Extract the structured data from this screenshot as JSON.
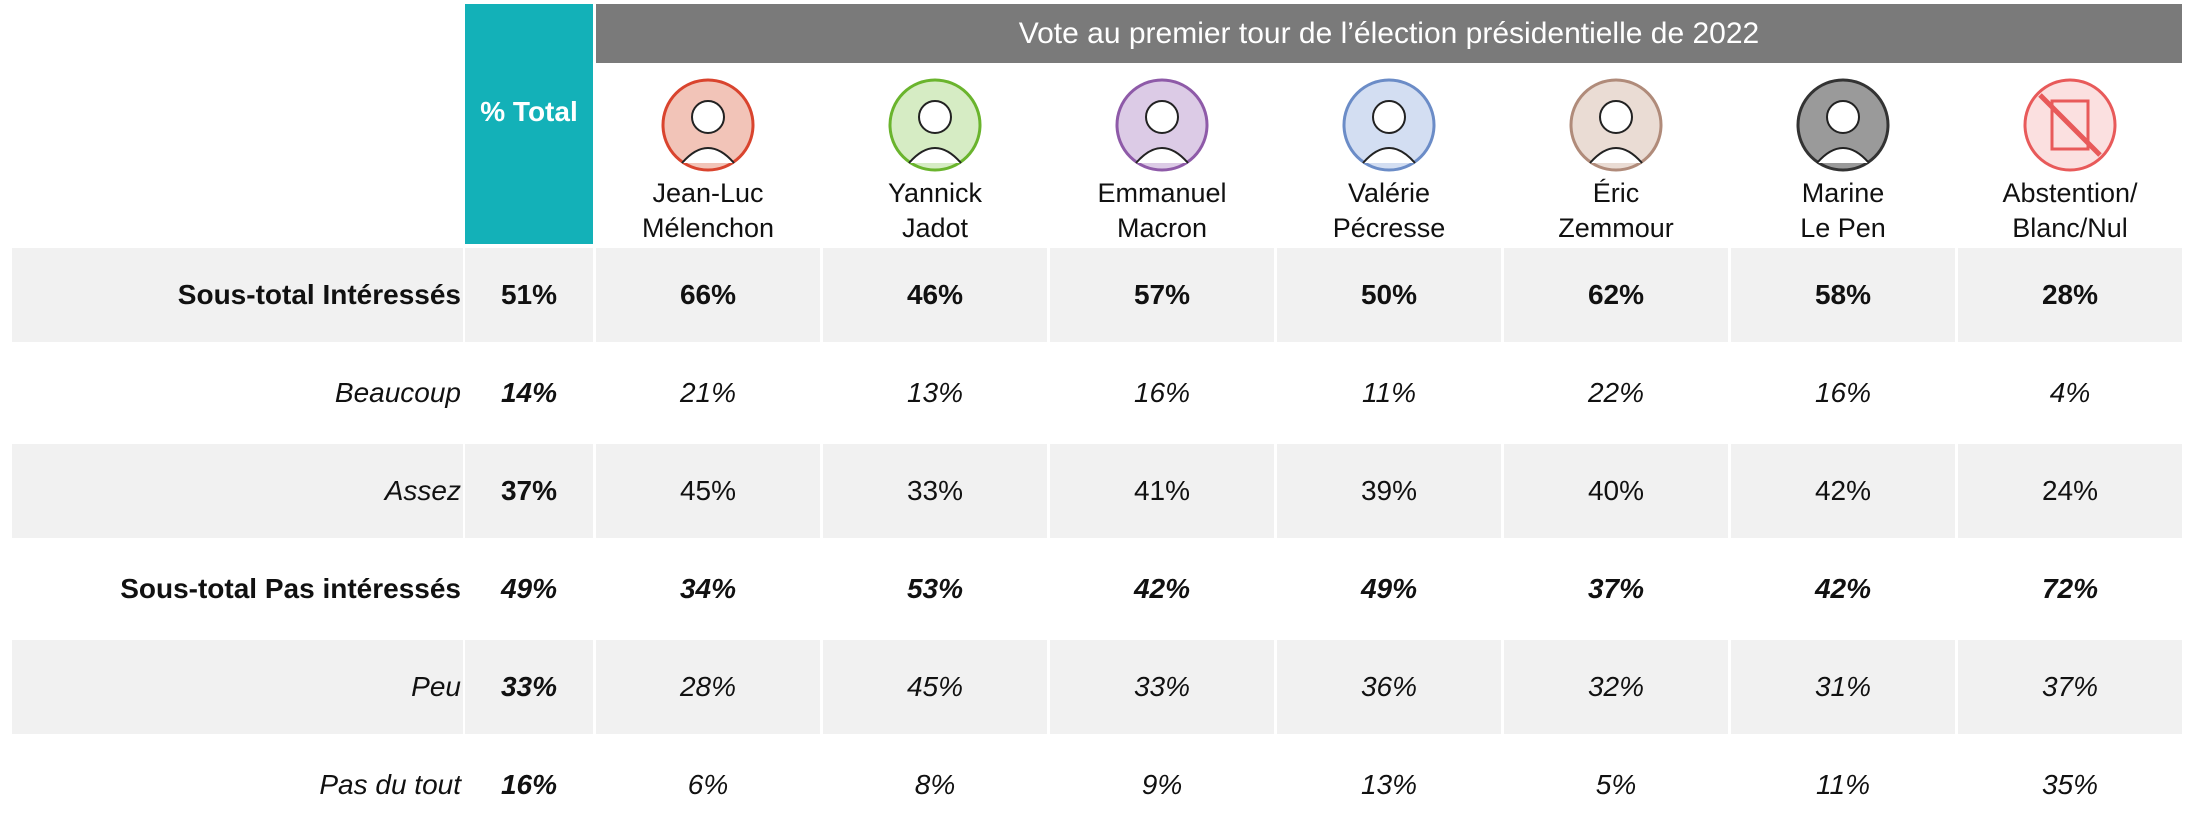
{
  "header": {
    "title": "Vote au premier tour de l’élection présidentielle de 2022",
    "total_label": "% Total"
  },
  "candidates": [
    {
      "name": [
        "Jean-Luc",
        "Mélenchon"
      ],
      "color": "#d9442e",
      "fill": "#f2c4b8"
    },
    {
      "name": [
        "Yannick",
        "Jadot"
      ],
      "color": "#6ab42d",
      "fill": "#d6ecc4"
    },
    {
      "name": [
        "Emmanuel",
        "Macron"
      ],
      "color": "#8e5aa8",
      "fill": "#dccbe6"
    },
    {
      "name": [
        "Valérie",
        "Pécresse"
      ],
      "color": "#6b8cc7",
      "fill": "#d3def2"
    },
    {
      "name": [
        "Éric",
        "Zemmour"
      ],
      "color": "#b08b7a",
      "fill": "#eadcd4"
    },
    {
      "name": [
        "Marine",
        "Le Pen"
      ],
      "color": "#333333",
      "fill": "#9a9a9a"
    },
    {
      "name": [
        "Abstention/",
        "Blanc/Nul"
      ],
      "color": "#e85a5a",
      "fill": "#fbe0e0"
    }
  ],
  "rows": [
    {
      "label": "Sous-total Intéressés",
      "total": "51%",
      "values": [
        "66%",
        "46%",
        "57%",
        "50%",
        "62%",
        "58%",
        "28%"
      ]
    },
    {
      "label": "Beaucoup",
      "total": "14%",
      "values": [
        "21%",
        "13%",
        "16%",
        "11%",
        "22%",
        "16%",
        "4%"
      ]
    },
    {
      "label": "Assez",
      "total": "37%",
      "values": [
        "45%",
        "33%",
        "41%",
        "39%",
        "40%",
        "42%",
        "24%"
      ]
    },
    {
      "label": "Sous-total Pas intéressés",
      "total": "49%",
      "values": [
        "34%",
        "53%",
        "42%",
        "49%",
        "37%",
        "42%",
        "72%"
      ]
    },
    {
      "label": "Peu",
      "total": "33%",
      "values": [
        "28%",
        "45%",
        "33%",
        "36%",
        "32%",
        "31%",
        "37%"
      ]
    },
    {
      "label": "Pas du tout",
      "total": "16%",
      "values": [
        "6%",
        "8%",
        "9%",
        "13%",
        "5%",
        "11%",
        "35%"
      ]
    }
  ]
}
